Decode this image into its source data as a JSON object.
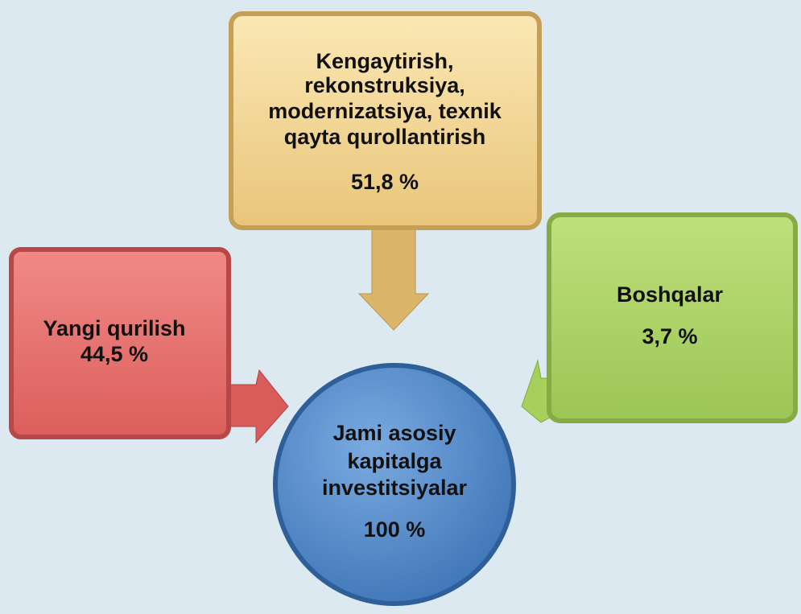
{
  "nodes": [
    {
      "lines": [
        "Kengaytirish,",
        "rekonstruksiya,",
        "modernizatsiya, texnik",
        "qayta qurollantirish"
      ],
      "value": "51,8 %"
    },
    {
      "lines": [
        "Yangi qurilish"
      ],
      "value": "44,5 %"
    },
    {
      "lines": [
        "Boshqalar"
      ],
      "value": "3,7 %"
    },
    {
      "lines": [
        "Jami asosiy",
        "kapitalga",
        "investitsiyalar"
      ],
      "value": "100 %"
    }
  ]
}
